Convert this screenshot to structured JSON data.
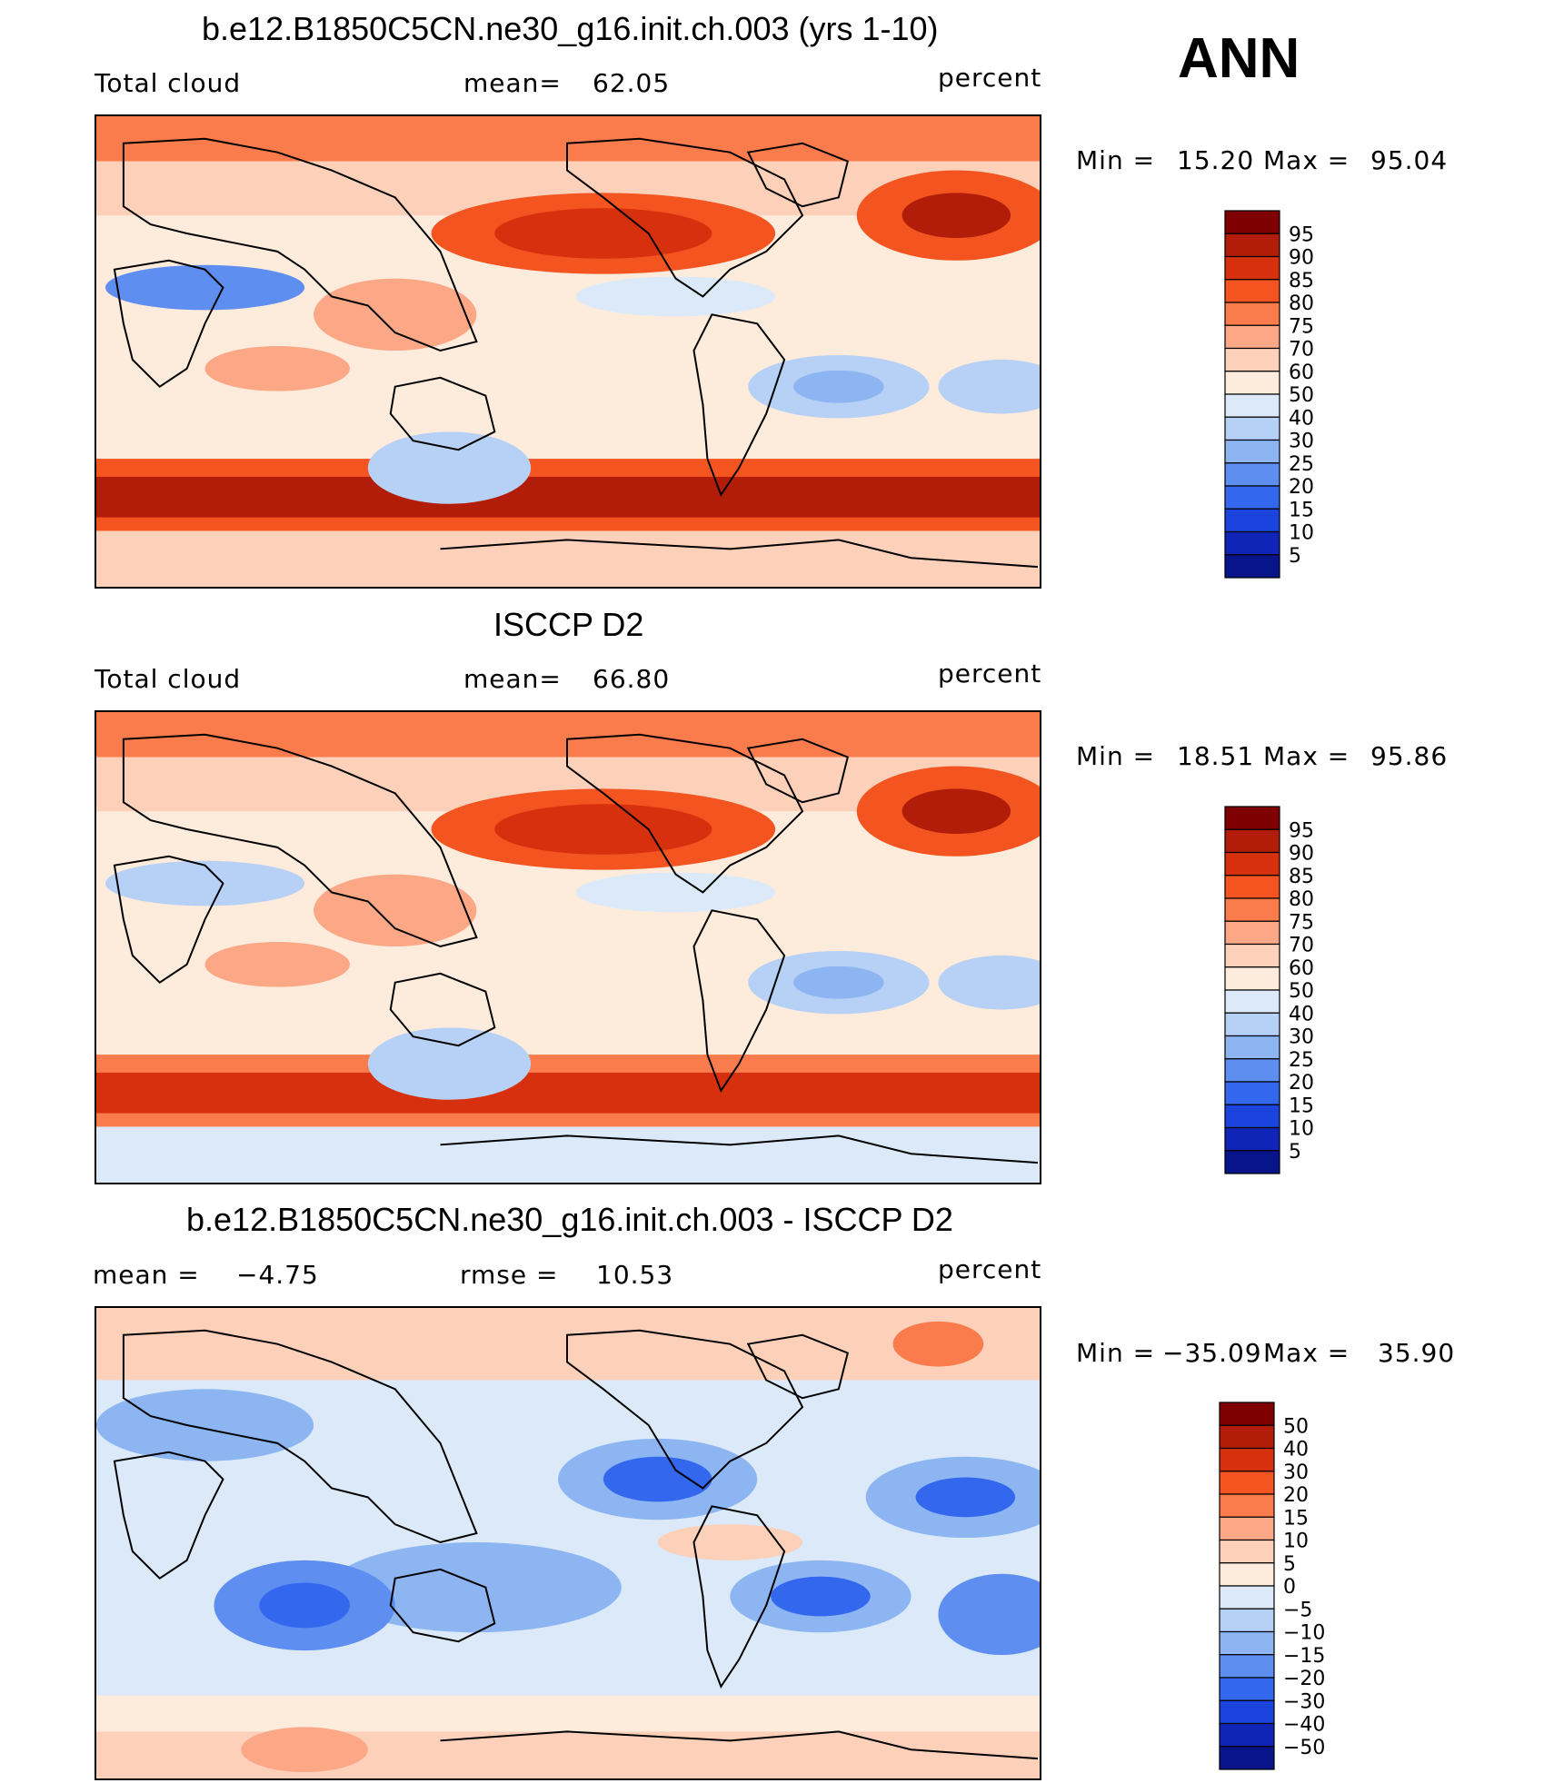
{
  "season": "ANN",
  "panels": [
    {
      "id": "model",
      "title": "b.e12.B1850C5CN.ne30_g16.init.ch.003 (yrs 1-10)",
      "left_label": "Total cloud",
      "stat_label": "mean=",
      "stat_value": "62.05",
      "units": "percent",
      "minmax": {
        "min_label": "Min =",
        "min": "15.20",
        "max_label": "Max =",
        "max": "95.04"
      },
      "colorbar": {
        "ticks": [
          "95",
          "90",
          "85",
          "80",
          "75",
          "70",
          "60",
          "50",
          "40",
          "30",
          "25",
          "20",
          "15",
          "10",
          "5"
        ],
        "colors": [
          "#7f0000",
          "#b21d0a",
          "#d7300f",
          "#f4541f",
          "#fa7c4c",
          "#fca887",
          "#fcd0b9",
          "#fdebdc",
          "#dbe9f8",
          "#b6d1f5",
          "#8cb5f2",
          "#5d8ef0",
          "#3368ee",
          "#1a44dd",
          "#0f25b8",
          "#081489"
        ]
      },
      "map_style": "model"
    },
    {
      "id": "obs",
      "title": "ISCCP D2",
      "left_label": "Total cloud",
      "stat_label": "mean=",
      "stat_value": "66.80",
      "units": "percent",
      "minmax": {
        "min_label": "Min =",
        "min": "18.51",
        "max_label": "Max =",
        "max": "95.86"
      },
      "colorbar": {
        "ticks": [
          "95",
          "90",
          "85",
          "80",
          "75",
          "70",
          "60",
          "50",
          "40",
          "30",
          "25",
          "20",
          "15",
          "10",
          "5"
        ],
        "colors": [
          "#7f0000",
          "#b21d0a",
          "#d7300f",
          "#f4541f",
          "#fa7c4c",
          "#fca887",
          "#fcd0b9",
          "#fdebdc",
          "#dbe9f8",
          "#b6d1f5",
          "#8cb5f2",
          "#5d8ef0",
          "#3368ee",
          "#1a44dd",
          "#0f25b8",
          "#081489"
        ]
      },
      "map_style": "obs"
    },
    {
      "id": "diff",
      "title": "b.e12.B1850C5CN.ne30_g16.init.ch.003 - ISCCP D2",
      "left_label": "mean =",
      "left_value": "−4.75",
      "stat_label": "rmse =",
      "stat_value": "10.53",
      "units": "percent",
      "minmax": {
        "min_label": "Min =",
        "min": "−35.09",
        "max_label": "Max =",
        "max": "35.90"
      },
      "colorbar": {
        "ticks": [
          "50",
          "40",
          "30",
          "20",
          "15",
          "10",
          "5",
          "0",
          "−5",
          "−10",
          "−15",
          "−20",
          "−30",
          "−40",
          "−50"
        ],
        "colors": [
          "#7f0000",
          "#b21d0a",
          "#d7300f",
          "#f4541f",
          "#fa7c4c",
          "#fca887",
          "#fcd0b9",
          "#fdebdc",
          "#dbe9f8",
          "#b6d1f5",
          "#8cb5f2",
          "#5d8ef0",
          "#3368ee",
          "#1a44dd",
          "#0f25b8",
          "#081489"
        ]
      },
      "map_style": "diff"
    }
  ]
}
